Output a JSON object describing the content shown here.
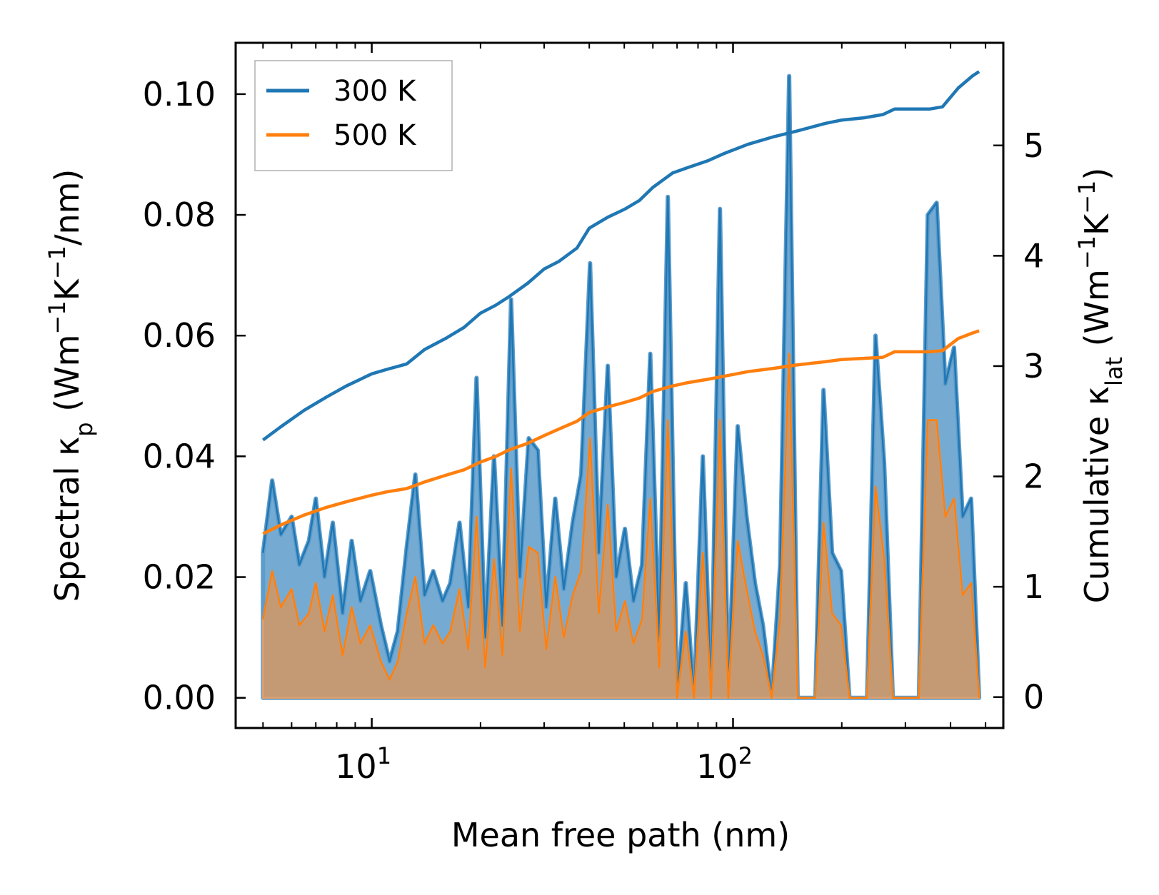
{
  "chart_data": {
    "type": "line",
    "title": "",
    "xlabel": "Mean free path (nm)",
    "xscale": "log",
    "xlim": [
      4.2,
      560
    ],
    "x_ticks": [
      {
        "value": 10,
        "base": "10",
        "exp": "1"
      },
      {
        "value": 100,
        "base": "10",
        "exp": "2"
      }
    ],
    "ylabel_left": {
      "prefix": "Spectral κ",
      "sub": "p",
      "unit_open": " (Wm",
      "sup1": "−1",
      "unit_mid": "K",
      "sup2": "−1",
      "unit_close": "/nm)"
    },
    "ylim_left": [
      -0.005,
      0.1085
    ],
    "left_ticks": [
      "0.00",
      "0.02",
      "0.04",
      "0.06",
      "0.08",
      "0.10"
    ],
    "ylabel_right": {
      "prefix": "Cumulative κ",
      "sub": "lat",
      "unit_open": " (Wm",
      "sup1": "−1",
      "unit_mid": "K",
      "sup2": "−1",
      "unit_close": ")"
    },
    "ylim_right": [
      -0.28,
      5.93
    ],
    "right_ticks": [
      "0",
      "1",
      "2",
      "3",
      "4",
      "5"
    ],
    "legend": {
      "position": "top-left",
      "entries": [
        "300 K",
        "500 K"
      ]
    },
    "colors": {
      "300K": "#1f77b4",
      "500K": "#ff7f0e",
      "fill300": "#5d9ccb",
      "fill500": "#c39a74"
    },
    "series": [
      {
        "name": "300 K",
        "cumulative": {
          "x": [
            5,
            5.6,
            6.5,
            7.5,
            8.5,
            10,
            11,
            12.5,
            14,
            16,
            18,
            20,
            22,
            24,
            27,
            30,
            33,
            37,
            40,
            45,
            50,
            55,
            60,
            68,
            75,
            85,
            95,
            110,
            130,
            150,
            180,
            200,
            230,
            260,
            280,
            350,
            380,
            420,
            460,
            480
          ],
          "y": [
            2.33,
            2.45,
            2.6,
            2.72,
            2.82,
            2.93,
            2.97,
            3.02,
            3.15,
            3.25,
            3.35,
            3.48,
            3.55,
            3.63,
            3.75,
            3.88,
            3.95,
            4.07,
            4.25,
            4.35,
            4.42,
            4.5,
            4.62,
            4.75,
            4.8,
            4.86,
            4.93,
            5.01,
            5.08,
            5.13,
            5.2,
            5.23,
            5.25,
            5.28,
            5.33,
            5.33,
            5.35,
            5.52,
            5.63,
            5.67
          ]
        },
        "spectral": {
          "x": [
            5,
            5.3,
            5.6,
            6,
            6.3,
            6.7,
            7,
            7.4,
            7.8,
            8.3,
            8.8,
            9.3,
            9.9,
            10.6,
            11.2,
            11.8,
            12.5,
            13.2,
            14,
            14.8,
            15.7,
            16.5,
            17.5,
            18.5,
            19.5,
            20.6,
            21.8,
            23,
            24.3,
            25.7,
            27.2,
            28.8,
            30.4,
            32.2,
            34,
            36,
            38,
            40.2,
            42.5,
            45,
            47.5,
            50.2,
            53,
            56,
            59,
            62.5,
            66,
            70,
            74,
            78,
            82.5,
            87,
            92,
            97,
            103,
            109,
            115,
            121,
            128,
            135,
            143,
            151,
            160,
            169,
            178,
            188,
            199,
            210,
            222,
            235,
            248,
            262,
            277,
            293,
            310,
            327,
            346,
            366,
            387,
            409,
            432,
            456,
            480
          ],
          "y": [
            0.024,
            0.036,
            0.027,
            0.03,
            0.022,
            0.026,
            0.033,
            0.02,
            0.029,
            0.014,
            0.026,
            0.016,
            0.021,
            0.012,
            0.006,
            0.011,
            0.025,
            0.037,
            0.017,
            0.021,
            0.016,
            0.019,
            0.029,
            0.015,
            0.053,
            0.01,
            0.04,
            0.012,
            0.066,
            0.02,
            0.043,
            0.041,
            0.015,
            0.033,
            0.018,
            0.029,
            0.037,
            0.072,
            0.024,
            0.055,
            0.02,
            0.028,
            0.016,
            0.022,
            0.057,
            0.009,
            0.083,
            0,
            0.019,
            0,
            0.04,
            0,
            0.081,
            0,
            0.045,
            0.03,
            0.019,
            0.012,
            0,
            0.022,
            0.103,
            0,
            0,
            0,
            0.051,
            0.024,
            0.021,
            0,
            0,
            0,
            0.06,
            0.039,
            0,
            0,
            0,
            0,
            0.08,
            0.082,
            0.052,
            0.058,
            0.03,
            0.033,
            0
          ]
        }
      },
      {
        "name": "500 K",
        "cumulative": {
          "x": [
            5,
            5.6,
            6.5,
            7.5,
            8.5,
            10,
            11,
            12.5,
            14,
            16,
            18,
            20,
            22,
            24,
            27,
            30,
            33,
            37,
            40,
            45,
            50,
            55,
            60,
            68,
            75,
            85,
            95,
            110,
            130,
            150,
            180,
            200,
            230,
            260,
            280,
            350,
            380,
            420,
            460,
            480
          ],
          "y": [
            1.48,
            1.56,
            1.65,
            1.72,
            1.77,
            1.83,
            1.86,
            1.89,
            1.95,
            2.01,
            2.06,
            2.13,
            2.18,
            2.24,
            2.3,
            2.37,
            2.43,
            2.5,
            2.58,
            2.63,
            2.67,
            2.71,
            2.77,
            2.82,
            2.85,
            2.88,
            2.91,
            2.95,
            2.98,
            3.01,
            3.04,
            3.06,
            3.07,
            3.08,
            3.13,
            3.13,
            3.14,
            3.25,
            3.3,
            3.32
          ]
        },
        "spectral": {
          "x": [
            5,
            5.3,
            5.6,
            6,
            6.3,
            6.7,
            7,
            7.4,
            7.8,
            8.3,
            8.8,
            9.3,
            9.9,
            10.6,
            11.2,
            11.8,
            12.5,
            13.2,
            14,
            14.8,
            15.7,
            16.5,
            17.5,
            18.5,
            19.5,
            20.6,
            21.8,
            23,
            24.3,
            25.7,
            27.2,
            28.8,
            30.4,
            32.2,
            34,
            36,
            38,
            40.2,
            42.5,
            45,
            47.5,
            50.2,
            53,
            56,
            59,
            62.5,
            66,
            70,
            74,
            78,
            82.5,
            87,
            92,
            97,
            103,
            109,
            115,
            121,
            128,
            135,
            143,
            151,
            160,
            169,
            178,
            188,
            199,
            210,
            222,
            235,
            248,
            262,
            277,
            293,
            310,
            327,
            346,
            366,
            387,
            409,
            432,
            456,
            480
          ],
          "y": [
            0.013,
            0.021,
            0.015,
            0.018,
            0.012,
            0.014,
            0.019,
            0.011,
            0.017,
            0.007,
            0.015,
            0.009,
            0.012,
            0.006,
            0.003,
            0.006,
            0.014,
            0.02,
            0.009,
            0.012,
            0.009,
            0.011,
            0.018,
            0.008,
            0.03,
            0.005,
            0.023,
            0.007,
            0.038,
            0.011,
            0.025,
            0.024,
            0.008,
            0.02,
            0.01,
            0.017,
            0.021,
            0.043,
            0.014,
            0.032,
            0.011,
            0.016,
            0.009,
            0.013,
            0.033,
            0.005,
            0.046,
            0,
            0.011,
            0,
            0.024,
            0,
            0.046,
            0,
            0.026,
            0.018,
            0.011,
            0.007,
            0,
            0.013,
            0.057,
            0,
            0,
            0,
            0.029,
            0.014,
            0.012,
            0,
            0,
            0,
            0.035,
            0.023,
            0,
            0,
            0,
            0,
            0.046,
            0.046,
            0.03,
            0.033,
            0.017,
            0.019,
            0
          ]
        }
      }
    ]
  }
}
